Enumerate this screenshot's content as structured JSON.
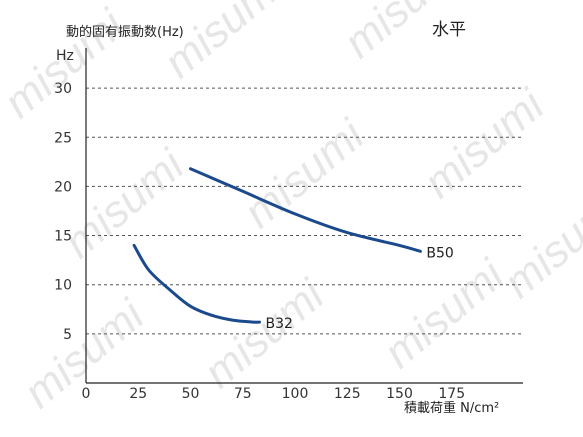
{
  "chart_data": {
    "type": "line",
    "title": "水平",
    "ylabel": "動的固有振動数(Hz)",
    "yunit": "Hz",
    "xlabel": "積載荷重 N/cm²",
    "xlim": [
      0,
      200
    ],
    "ylim": [
      0,
      30
    ],
    "xticks": [
      0,
      25,
      50,
      75,
      100,
      125,
      150,
      175
    ],
    "yticks": [
      5,
      10,
      15,
      20,
      25,
      30
    ],
    "grid": "horizontal-dashed",
    "legend": "inline-labels",
    "line_color": "#1a4a8c",
    "series": [
      {
        "name": "B50",
        "x": [
          50,
          75,
          100,
          125,
          150,
          160
        ],
        "y": [
          21.8,
          19.5,
          17.2,
          15.3,
          14.0,
          13.4
        ]
      },
      {
        "name": "B32",
        "x": [
          23,
          30,
          40,
          50,
          60,
          70,
          80,
          83
        ],
        "y": [
          14.0,
          11.5,
          9.5,
          7.8,
          6.9,
          6.4,
          6.2,
          6.2
        ]
      }
    ]
  },
  "watermark": "misumi"
}
